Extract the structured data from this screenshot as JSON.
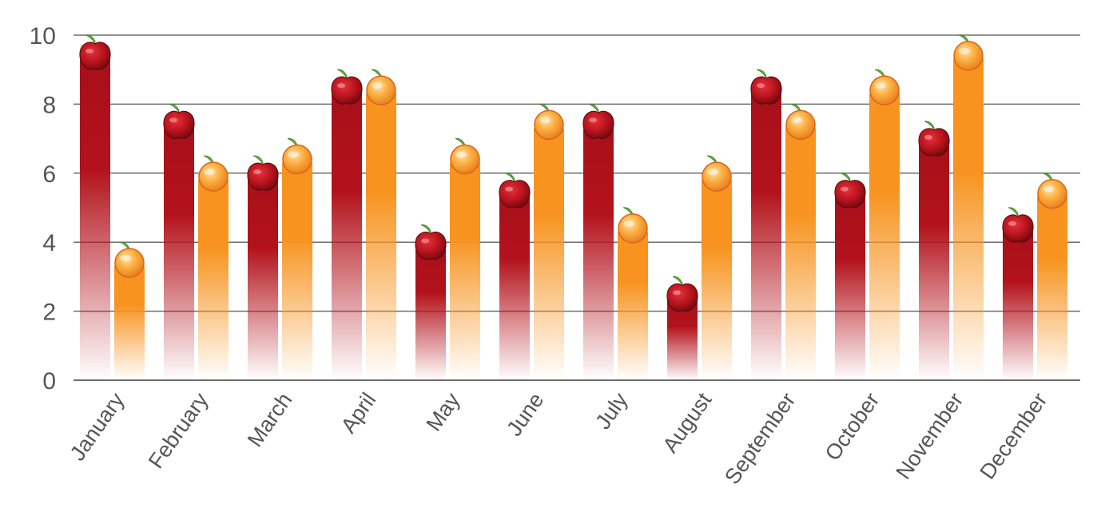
{
  "chart_data": {
    "type": "bar",
    "categories": [
      "January",
      "February",
      "March",
      "April",
      "May",
      "June",
      "July",
      "August",
      "September",
      "October",
      "November",
      "December"
    ],
    "series": [
      {
        "values": [
          9.4,
          7.4,
          5.9,
          8.4,
          3.9,
          5.4,
          7.4,
          2.4,
          8.4,
          5.4,
          6.9,
          4.4
        ],
        "color": "#b3121b",
        "icon": "apple-icon"
      },
      {
        "values": [
          3.4,
          5.9,
          6.4,
          8.4,
          6.4,
          7.4,
          4.4,
          5.9,
          7.4,
          8.4,
          9.4,
          5.4
        ],
        "color": "#f7931e",
        "icon": "orange-icon"
      }
    ],
    "xlabel": "",
    "ylabel": "",
    "ylim": [
      0,
      10
    ],
    "yticks": [
      "0",
      "2",
      "4",
      "6",
      "8",
      "10"
    ],
    "grid": true,
    "legend": "none"
  }
}
